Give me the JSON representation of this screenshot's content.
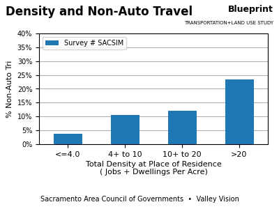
{
  "chart_data": {
    "type": "bar",
    "title": "Density and Non-Auto Travel",
    "categories": [
      "<=4.0",
      "4+ to 10",
      "10+ to 20",
      ">20"
    ],
    "series": [
      {
        "name": "Survey # SACSIM",
        "values": [
          3.8,
          10.5,
          12.0,
          23.5
        ]
      }
    ],
    "ylabel": "% Non-Auto Tri",
    "xlabel": "Total Density at Place of Residence\n( Jobs + Dwellings Per Acre)",
    "ylim": [
      0,
      40
    ],
    "yticks": [
      {
        "value": 0,
        "label": "0%"
      },
      {
        "value": 5,
        "label": "5%"
      },
      {
        "value": 10,
        "label": "10%"
      },
      {
        "value": 15,
        "label": "15%"
      },
      {
        "value": 20,
        "label": "20%"
      },
      {
        "value": 25,
        "label": "25%"
      },
      {
        "value": 30,
        "label": "30%"
      },
      {
        "value": 35,
        "label": "35%"
      },
      {
        "value": 40,
        "label": "40%"
      }
    ],
    "grid": true,
    "legend": "upper left",
    "annotations": [
      "Blueprint",
      "TRANSPORTATION+LAND USE STUDY",
      "Sacramento Area Council of Governments  •  Valley Vision"
    ]
  }
}
